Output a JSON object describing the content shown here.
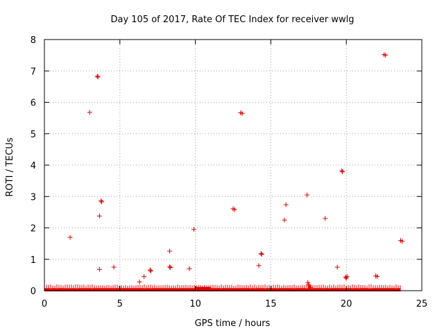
{
  "chart_data": {
    "type": "scatter",
    "title": "Day 105 of 2017, Rate Of TEC Index for receiver wwlg",
    "xlabel": "GPS time / hours",
    "ylabel": "ROTI / TECUs",
    "xlim": [
      0,
      25
    ],
    "ylim": [
      0,
      8
    ],
    "x_ticks": [
      "0",
      "5",
      "10",
      "15",
      "20",
      "25"
    ],
    "y_ticks": [
      "0",
      "1",
      "2",
      "3",
      "4",
      "5",
      "6",
      "7",
      "8"
    ],
    "grid": true,
    "marker": "plus",
    "color": "#e00000",
    "baseline": {
      "x_range": [
        0,
        23.6
      ],
      "y_max": 0.08,
      "note_x": [
        10,
        11
      ],
      "note_y": 0.12
    },
    "points": [
      {
        "x": 1.7,
        "y": 1.7
      },
      {
        "x": 3.0,
        "y": 5.68
      },
      {
        "x": 3.5,
        "y": 6.83
      },
      {
        "x": 3.55,
        "y": 6.81
      },
      {
        "x": 3.65,
        "y": 2.38
      },
      {
        "x": 3.65,
        "y": 0.68
      },
      {
        "x": 3.75,
        "y": 2.86
      },
      {
        "x": 3.8,
        "y": 2.83
      },
      {
        "x": 4.6,
        "y": 0.75
      },
      {
        "x": 6.3,
        "y": 0.28
      },
      {
        "x": 6.6,
        "y": 0.45
      },
      {
        "x": 7.0,
        "y": 0.66
      },
      {
        "x": 7.05,
        "y": 0.63
      },
      {
        "x": 8.3,
        "y": 1.26
      },
      {
        "x": 8.3,
        "y": 0.76
      },
      {
        "x": 8.35,
        "y": 0.74
      },
      {
        "x": 9.6,
        "y": 0.7
      },
      {
        "x": 9.9,
        "y": 1.95
      },
      {
        "x": 12.5,
        "y": 2.61
      },
      {
        "x": 12.6,
        "y": 2.58
      },
      {
        "x": 13.0,
        "y": 5.67
      },
      {
        "x": 13.1,
        "y": 5.64
      },
      {
        "x": 14.2,
        "y": 0.8
      },
      {
        "x": 14.35,
        "y": 1.18
      },
      {
        "x": 14.4,
        "y": 1.16
      },
      {
        "x": 15.9,
        "y": 2.25
      },
      {
        "x": 16.0,
        "y": 2.74
      },
      {
        "x": 17.4,
        "y": 3.05
      },
      {
        "x": 17.45,
        "y": 0.26
      },
      {
        "x": 17.5,
        "y": 0.2
      },
      {
        "x": 17.55,
        "y": 0.15
      },
      {
        "x": 17.6,
        "y": 0.1
      },
      {
        "x": 18.6,
        "y": 2.3
      },
      {
        "x": 19.4,
        "y": 0.75
      },
      {
        "x": 19.7,
        "y": 3.82
      },
      {
        "x": 19.75,
        "y": 3.79
      },
      {
        "x": 19.95,
        "y": 0.43
      },
      {
        "x": 20.05,
        "y": 0.45
      },
      {
        "x": 20.0,
        "y": 0.4
      },
      {
        "x": 21.95,
        "y": 0.47
      },
      {
        "x": 22.05,
        "y": 0.45
      },
      {
        "x": 22.5,
        "y": 7.52
      },
      {
        "x": 22.6,
        "y": 7.5
      },
      {
        "x": 23.6,
        "y": 1.6
      },
      {
        "x": 23.7,
        "y": 1.57
      }
    ]
  }
}
